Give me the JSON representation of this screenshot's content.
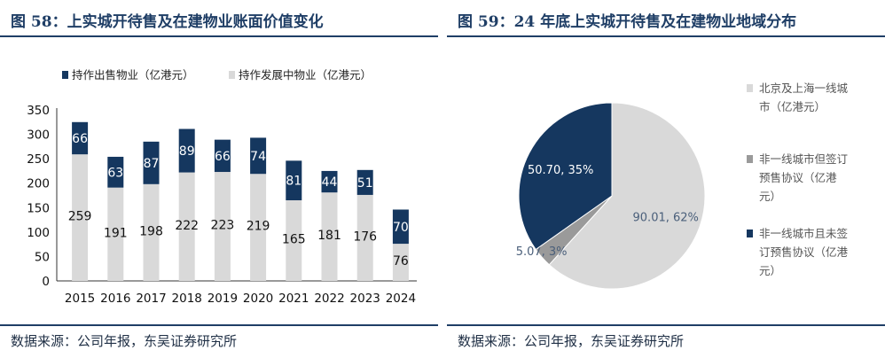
{
  "left": {
    "title": "图 58：上实城开待售及在建物业账面价值变化",
    "source": "数据来源：公司年报，东吴证券研究所"
  },
  "right": {
    "title": "图 59：24 年底上实城开待售及在建物业地域分布",
    "source": "数据来源：公司年报，东吴证券研究所"
  },
  "colors": {
    "navy": "#15375f",
    "light_gray": "#d9d9d9",
    "mid_gray": "#9a9a9a",
    "rule": "#1f3e66"
  },
  "chart_data": [
    {
      "type": "bar",
      "stacked": true,
      "title": "图 58：上实城开待售及在建物业账面价值变化",
      "categories": [
        "2015",
        "2016",
        "2017",
        "2018",
        "2019",
        "2020",
        "2021",
        "2022",
        "2023",
        "2024"
      ],
      "series": [
        {
          "name": "持作发展中物业（亿港元）",
          "color": "#d9d9d9",
          "values": [
            259,
            191,
            198,
            222,
            223,
            219,
            165,
            181,
            176,
            76
          ]
        },
        {
          "name": "持作出售物业（亿港元）",
          "color": "#15375f",
          "values": [
            66,
            63,
            87,
            89,
            66,
            74,
            81,
            44,
            51,
            70
          ]
        }
      ],
      "ylim": [
        0,
        350
      ],
      "yticks": [
        0,
        50,
        100,
        150,
        200,
        250,
        300,
        350
      ],
      "xlabel": "",
      "ylabel": "",
      "legend": "top"
    },
    {
      "type": "pie",
      "title": "图 59：24 年底上实城开待售及在建物业地域分布",
      "slices": [
        {
          "name": "北京及上海一线城市（亿港元）",
          "value": 90.01,
          "percent": "62%",
          "label": "90.01, 62%",
          "color": "#d9d9d9"
        },
        {
          "name": "非一线城市但签订预售协议（亿港元）",
          "value": 5.07,
          "percent": "3%",
          "label": "5.07, 3%",
          "color": "#9a9a9a"
        },
        {
          "name": "非一线城市且未签订预售协议（亿港元）",
          "value": 50.7,
          "percent": "35%",
          "label": "50.70, 35%",
          "color": "#15375f"
        }
      ],
      "legend_lines": [
        [
          "北京及上海一线城",
          "市（亿港元）"
        ],
        [
          "非一线城市但签订",
          "预售协议（亿港",
          "元）"
        ],
        [
          "非一线城市且未签",
          "订预售协议（亿港",
          "元）"
        ]
      ],
      "legend": "right"
    }
  ]
}
